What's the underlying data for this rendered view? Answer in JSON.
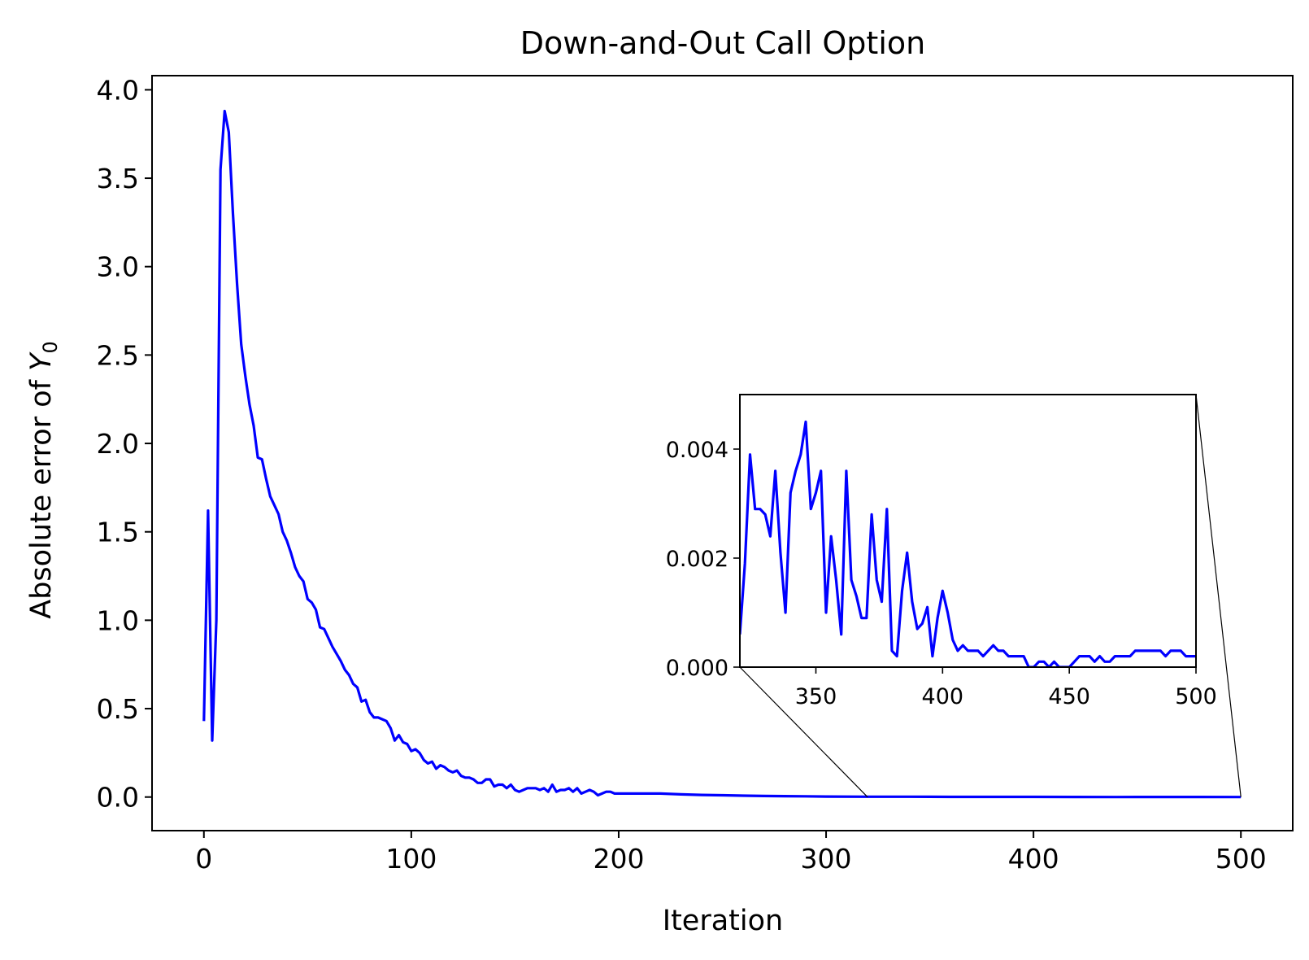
{
  "chart_data": {
    "type": "line",
    "title": "Down-and-Out Call Option",
    "xlabel": "Iteration",
    "ylabel_prefix": "Absolute error of ",
    "ylabel_symbol": "Y",
    "ylabel_subscript": "0",
    "xlim": [
      -25,
      525
    ],
    "ylim": [
      -0.19,
      4.08
    ],
    "xticks": [
      0,
      100,
      200,
      300,
      400,
      500
    ],
    "xtick_labels": [
      "0",
      "100",
      "200",
      "300",
      "400",
      "500"
    ],
    "yticks": [
      0.0,
      0.5,
      1.0,
      1.5,
      2.0,
      2.5,
      3.0,
      3.5,
      4.0
    ],
    "ytick_labels": [
      "0.0",
      "0.5",
      "1.0",
      "1.5",
      "2.0",
      "2.5",
      "3.0",
      "3.5",
      "4.0"
    ],
    "grid": false,
    "color": "#0000ff",
    "series": [
      {
        "x": [
          0,
          2,
          4,
          6,
          8,
          10,
          12,
          14,
          16,
          18,
          20,
          22,
          24,
          26,
          28,
          30,
          32,
          34,
          36,
          38,
          40,
          42,
          44,
          46,
          48,
          50,
          52,
          54,
          56,
          58,
          60,
          62,
          64,
          66,
          68,
          70,
          72,
          74,
          76,
          78,
          80,
          82,
          84,
          86,
          88,
          90,
          92,
          94,
          96,
          98,
          100,
          102,
          104,
          106,
          108,
          110,
          112,
          114,
          116,
          118,
          120,
          122,
          124,
          126,
          128,
          130,
          132,
          134,
          136,
          138,
          140,
          142,
          144,
          146,
          148,
          150,
          152,
          154,
          156,
          158,
          160,
          162,
          164,
          166,
          168,
          170,
          172,
          174,
          176,
          178,
          180,
          182,
          184,
          186,
          188,
          190,
          192,
          194,
          196,
          198,
          200,
          210,
          220,
          230,
          240,
          250,
          260,
          270,
          280,
          290,
          300,
          320,
          340,
          360,
          380,
          400,
          420,
          440,
          460,
          480,
          500
        ],
        "y": [
          0.43,
          1.62,
          0.32,
          1.0,
          3.55,
          3.88,
          3.76,
          3.3,
          2.9,
          2.56,
          2.38,
          2.22,
          2.1,
          1.92,
          1.91,
          1.8,
          1.7,
          1.65,
          1.6,
          1.5,
          1.45,
          1.38,
          1.3,
          1.25,
          1.22,
          1.12,
          1.1,
          1.06,
          0.96,
          0.95,
          0.9,
          0.85,
          0.81,
          0.77,
          0.72,
          0.69,
          0.64,
          0.62,
          0.54,
          0.55,
          0.48,
          0.45,
          0.45,
          0.44,
          0.43,
          0.39,
          0.32,
          0.35,
          0.31,
          0.3,
          0.26,
          0.27,
          0.25,
          0.21,
          0.19,
          0.2,
          0.16,
          0.18,
          0.17,
          0.15,
          0.14,
          0.15,
          0.12,
          0.11,
          0.11,
          0.1,
          0.08,
          0.08,
          0.1,
          0.1,
          0.06,
          0.07,
          0.07,
          0.05,
          0.07,
          0.04,
          0.03,
          0.04,
          0.05,
          0.05,
          0.05,
          0.04,
          0.05,
          0.03,
          0.07,
          0.03,
          0.04,
          0.04,
          0.05,
          0.03,
          0.05,
          0.02,
          0.03,
          0.04,
          0.03,
          0.01,
          0.02,
          0.03,
          0.03,
          0.02,
          0.02,
          0.02,
          0.02,
          0.015,
          0.012,
          0.01,
          0.008,
          0.006,
          0.005,
          0.004,
          0.003,
          0.002,
          0.002,
          0.001,
          0.001,
          0.001,
          0.0004,
          0.0002,
          0.0003,
          0.0003,
          0.0002
        ]
      }
    ],
    "inset": {
      "xlim": [
        320,
        500
      ],
      "ylim": [
        0.0,
        0.005
      ],
      "xticks": [
        350,
        400,
        450,
        500
      ],
      "xtick_labels": [
        "350",
        "400",
        "450",
        "500"
      ],
      "yticks": [
        0.0,
        0.002,
        0.004
      ],
      "ytick_labels": [
        "0.000",
        "0.002",
        "0.004"
      ],
      "connector_from": [
        320,
        0
      ],
      "connector_to": [
        500,
        0
      ],
      "x": [
        320,
        322,
        324,
        326,
        328,
        330,
        332,
        334,
        336,
        338,
        340,
        342,
        344,
        346,
        348,
        350,
        352,
        354,
        356,
        358,
        360,
        362,
        364,
        366,
        368,
        370,
        372,
        374,
        376,
        378,
        380,
        382,
        384,
        386,
        388,
        390,
        392,
        394,
        396,
        398,
        400,
        402,
        404,
        406,
        408,
        410,
        412,
        414,
        416,
        418,
        420,
        422,
        424,
        426,
        428,
        430,
        432,
        434,
        436,
        438,
        440,
        442,
        444,
        446,
        448,
        450,
        452,
        454,
        456,
        458,
        460,
        462,
        464,
        466,
        468,
        470,
        472,
        474,
        476,
        478,
        480,
        482,
        484,
        486,
        488,
        490,
        492,
        494,
        496,
        498,
        500
      ],
      "y": [
        0.0006,
        0.0019,
        0.0039,
        0.0029,
        0.0029,
        0.0028,
        0.0024,
        0.0036,
        0.0021,
        0.001,
        0.0032,
        0.0036,
        0.0039,
        0.0045,
        0.0029,
        0.0032,
        0.0036,
        0.001,
        0.0024,
        0.0016,
        0.0006,
        0.0036,
        0.0016,
        0.0013,
        0.0009,
        0.0009,
        0.0028,
        0.0016,
        0.0012,
        0.0029,
        0.0003,
        0.0002,
        0.0014,
        0.0021,
        0.0012,
        0.0007,
        0.0008,
        0.0011,
        0.0002,
        0.0009,
        0.0014,
        0.001,
        0.0005,
        0.0003,
        0.0004,
        0.0003,
        0.0003,
        0.0003,
        0.0002,
        0.0003,
        0.0004,
        0.0003,
        0.0003,
        0.0002,
        0.0002,
        0.0002,
        0.0002,
        0.0,
        0.0,
        0.0001,
        0.0001,
        0.0,
        0.0001,
        0.0,
        0.0,
        0.0,
        0.0001,
        0.0002,
        0.0002,
        0.0002,
        0.0001,
        0.0002,
        0.0001,
        0.0001,
        0.0002,
        0.0002,
        0.0002,
        0.0002,
        0.0003,
        0.0003,
        0.0003,
        0.0003,
        0.0003,
        0.0003,
        0.0002,
        0.0003,
        0.0003,
        0.0003,
        0.0002,
        0.0002,
        0.0002
      ]
    }
  }
}
